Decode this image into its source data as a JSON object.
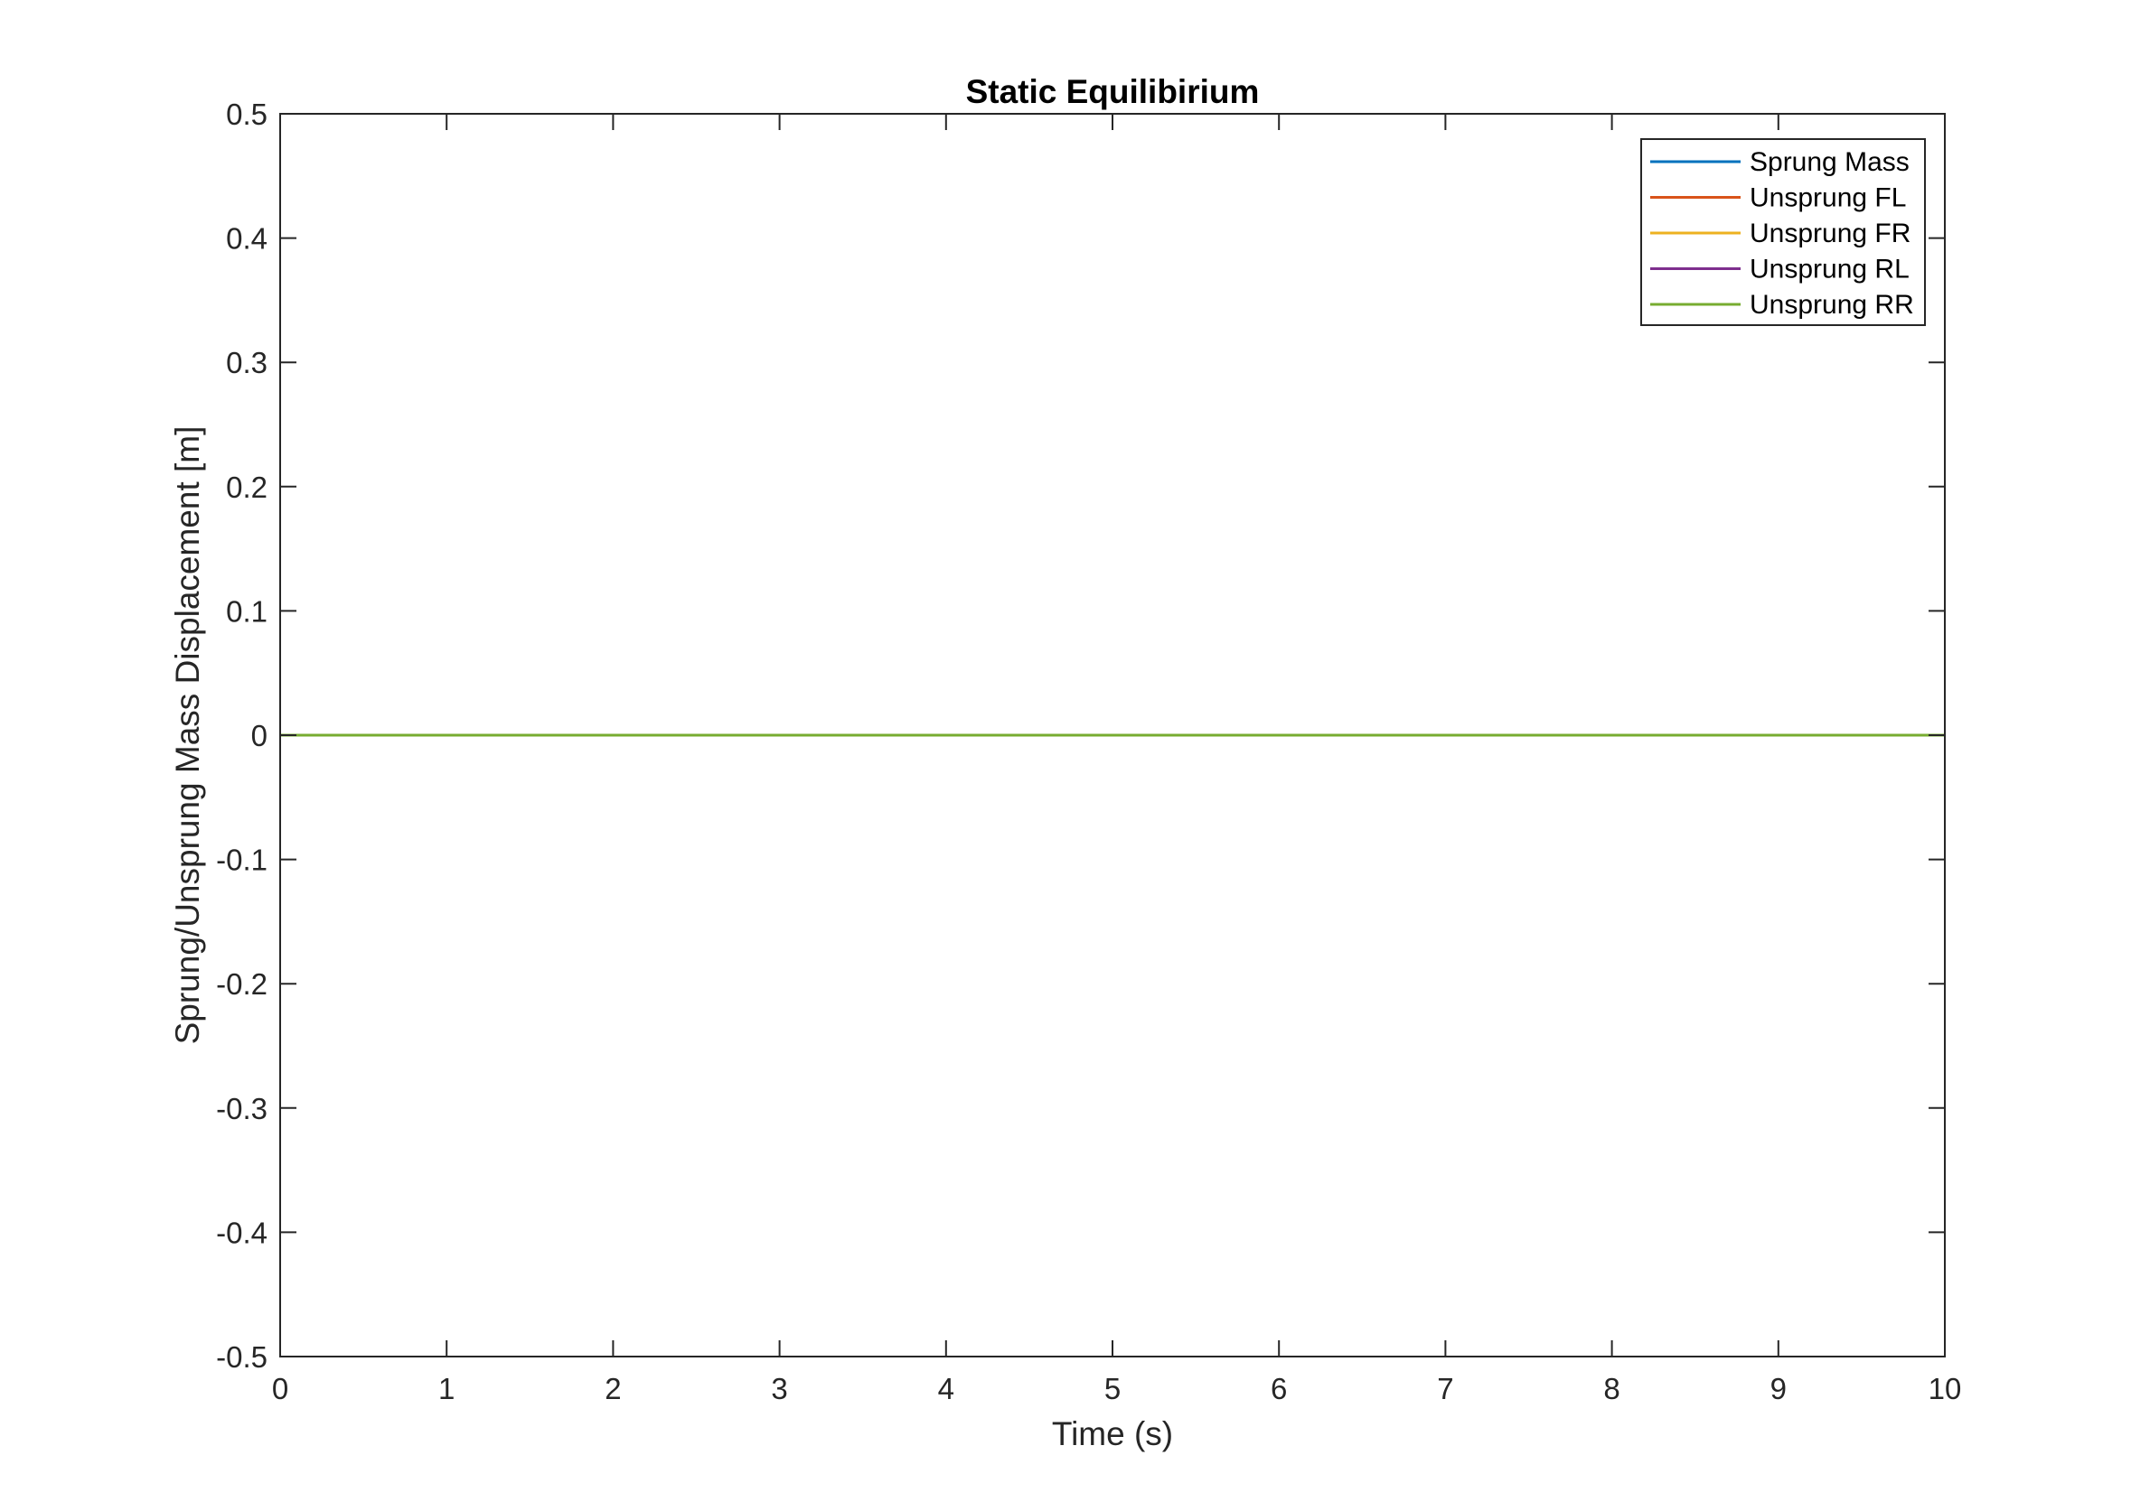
{
  "chart_data": {
    "type": "line",
    "title": "Static Equilibirium",
    "xlabel": "Time (s)",
    "ylabel": "Sprung/Unsprung Mass Displacement [m]",
    "xlim": [
      0,
      10
    ],
    "ylim": [
      -0.5,
      0.5
    ],
    "xticks": [
      0,
      1,
      2,
      3,
      4,
      5,
      6,
      7,
      8,
      9,
      10
    ],
    "xtick_labels": [
      "0",
      "1",
      "2",
      "3",
      "4",
      "5",
      "6",
      "7",
      "8",
      "9",
      "10"
    ],
    "yticks": [
      -0.5,
      -0.4,
      -0.3,
      -0.2,
      -0.1,
      0,
      0.1,
      0.2,
      0.3,
      0.4,
      0.5
    ],
    "ytick_labels": [
      "-0.5",
      "-0.4",
      "-0.3",
      "-0.2",
      "-0.1",
      "0",
      "0.1",
      "0.2",
      "0.3",
      "0.4",
      "0.5"
    ],
    "grid": false,
    "legend_position": "top-right",
    "x": [
      0,
      10
    ],
    "series": [
      {
        "name": "Sprung Mass",
        "color": "#0072BD",
        "values": [
          0,
          0
        ]
      },
      {
        "name": "Unsprung FL",
        "color": "#D95319",
        "values": [
          0,
          0
        ]
      },
      {
        "name": "Unsprung FR",
        "color": "#EDB120",
        "values": [
          0,
          0
        ]
      },
      {
        "name": "Unsprung RL",
        "color": "#7E2F8E",
        "values": [
          0,
          0
        ]
      },
      {
        "name": "Unsprung RR",
        "color": "#77AC30",
        "values": [
          0,
          0
        ]
      }
    ]
  }
}
